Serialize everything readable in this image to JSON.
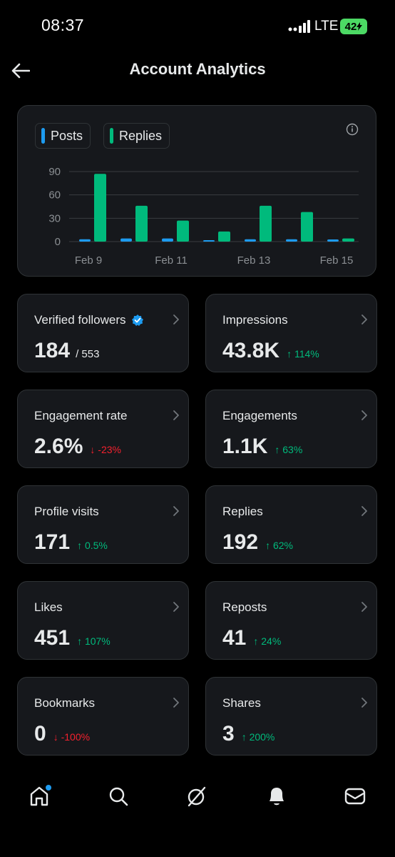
{
  "status_bar": {
    "time": "08:37",
    "network": "LTE",
    "battery": "42"
  },
  "header": {
    "title": "Account Analytics",
    "back_icon": "arrow-left-icon"
  },
  "colors": {
    "posts": "#1d9bf0",
    "replies": "#00ba7c",
    "up": "#00ba7c",
    "down": "#f4212e",
    "verified": "#1d9bf0"
  },
  "chart_data": {
    "type": "bar",
    "legend": [
      "Posts",
      "Replies"
    ],
    "categories": [
      "Feb 9",
      "Feb 10",
      "Feb 11",
      "Feb 12",
      "Feb 13",
      "Feb 14",
      "Feb 15"
    ],
    "x_tick_labels": [
      "Feb 9",
      "Feb 11",
      "Feb 13",
      "Feb 15"
    ],
    "y_ticks": [
      0,
      30,
      60,
      90
    ],
    "ylim": [
      0,
      90
    ],
    "series": [
      {
        "name": "Posts",
        "values": [
          3,
          4,
          4,
          0,
          3,
          3,
          1
        ]
      },
      {
        "name": "Replies",
        "values": [
          87,
          46,
          27,
          13,
          46,
          38,
          4
        ]
      }
    ],
    "grid": true,
    "legend_placement": "top-left"
  },
  "stats": [
    {
      "label": "Verified followers",
      "value": "184",
      "sub": "/ 553",
      "change": "",
      "direction": "",
      "verified": true
    },
    {
      "label": "Impressions",
      "value": "43.8K",
      "sub": "",
      "change": "114%",
      "direction": "up"
    },
    {
      "label": "Engagement rate",
      "value": "2.6%",
      "sub": "",
      "change": "-23%",
      "direction": "down"
    },
    {
      "label": "Engagements",
      "value": "1.1K",
      "sub": "",
      "change": "63%",
      "direction": "up"
    },
    {
      "label": "Profile visits",
      "value": "171",
      "sub": "",
      "change": "0.5%",
      "direction": "up"
    },
    {
      "label": "Replies",
      "value": "192",
      "sub": "",
      "change": "62%",
      "direction": "up"
    },
    {
      "label": "Likes",
      "value": "451",
      "sub": "",
      "change": "107%",
      "direction": "up"
    },
    {
      "label": "Reposts",
      "value": "41",
      "sub": "",
      "change": "24%",
      "direction": "up"
    },
    {
      "label": "Bookmarks",
      "value": "0",
      "sub": "",
      "change": "-100%",
      "direction": "down"
    },
    {
      "label": "Shares",
      "value": "3",
      "sub": "",
      "change": "200%",
      "direction": "up"
    }
  ],
  "nav": [
    "home-icon",
    "search-icon",
    "grok-icon",
    "notifications-icon",
    "messages-icon"
  ]
}
